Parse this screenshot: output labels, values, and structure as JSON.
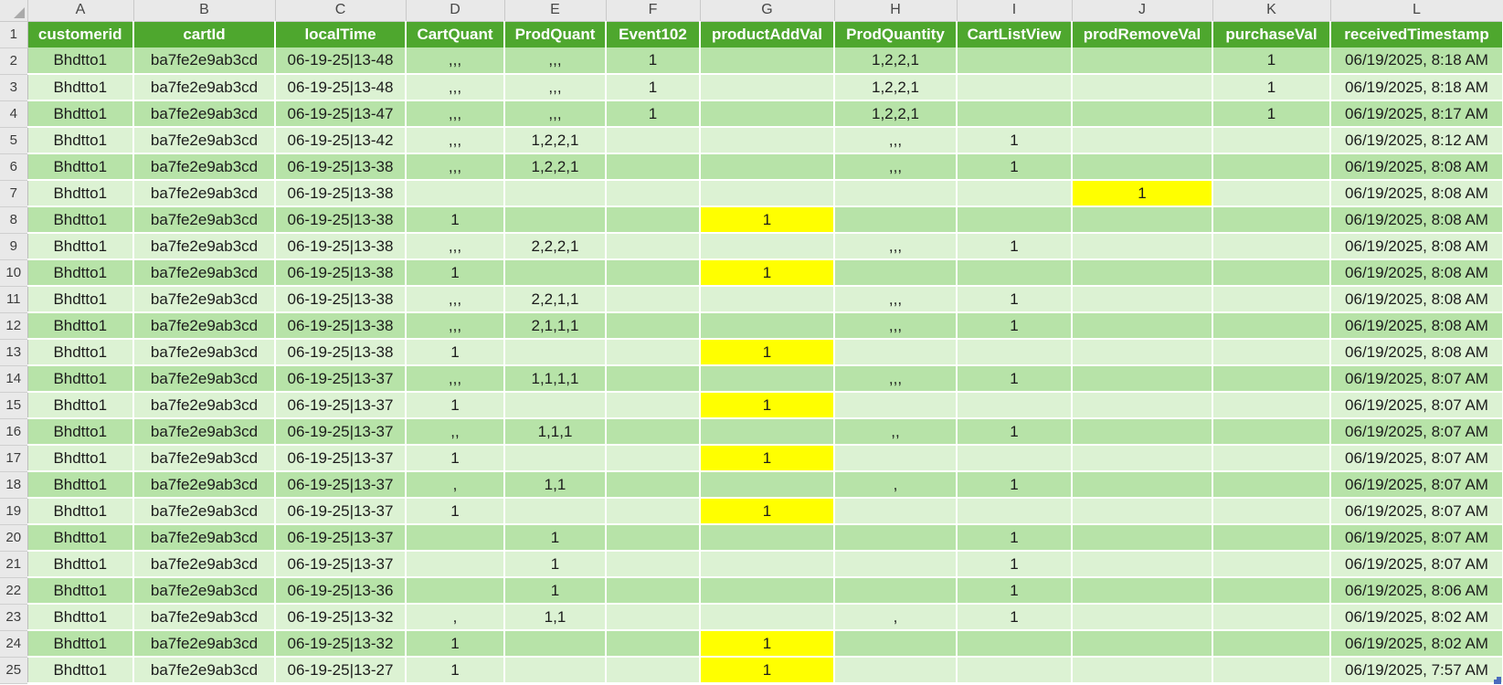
{
  "colors": {
    "header_bg": "#4ea72e",
    "band_dark": "#b7e3a8",
    "band_light": "#dcf2d3",
    "highlight": "#ffff00",
    "chrome_bg": "#e9e9e9",
    "grid_line": "#ffffff",
    "resize_handle": "#4a6bbd"
  },
  "sheet": {
    "header_row_number": "1",
    "column_letters": [
      "A",
      "B",
      "C",
      "D",
      "E",
      "F",
      "G",
      "H",
      "I",
      "J",
      "K",
      "L"
    ],
    "headers": [
      "customerid",
      "cartId",
      "localTime",
      "CartQuant",
      "ProdQuant",
      "Event102",
      "productAddVal",
      "ProdQuantity",
      "CartListView",
      "prodRemoveVal",
      "purchaseVal",
      "receivedTimestamp"
    ],
    "rows": [
      {
        "n": 2,
        "cells": [
          "Bhdtto1",
          "ba7fe2e9ab3cd",
          "06-19-25|13-48",
          ",,,",
          ",,,",
          "1",
          "",
          "1,2,2,1",
          "",
          "",
          "1",
          "06/19/2025, 8:18 AM"
        ],
        "hl": []
      },
      {
        "n": 3,
        "cells": [
          "Bhdtto1",
          "ba7fe2e9ab3cd",
          "06-19-25|13-48",
          ",,,",
          ",,,",
          "1",
          "",
          "1,2,2,1",
          "",
          "",
          "1",
          "06/19/2025, 8:18 AM"
        ],
        "hl": []
      },
      {
        "n": 4,
        "cells": [
          "Bhdtto1",
          "ba7fe2e9ab3cd",
          "06-19-25|13-47",
          ",,,",
          ",,,",
          "1",
          "",
          "1,2,2,1",
          "",
          "",
          "1",
          "06/19/2025, 8:17 AM"
        ],
        "hl": []
      },
      {
        "n": 5,
        "cells": [
          "Bhdtto1",
          "ba7fe2e9ab3cd",
          "06-19-25|13-42",
          ",,,",
          "1,2,2,1",
          "",
          "",
          ",,,",
          "1",
          "",
          "",
          "06/19/2025, 8:12 AM"
        ],
        "hl": []
      },
      {
        "n": 6,
        "cells": [
          "Bhdtto1",
          "ba7fe2e9ab3cd",
          "06-19-25|13-38",
          ",,,",
          "1,2,2,1",
          "",
          "",
          ",,,",
          "1",
          "",
          "",
          "06/19/2025, 8:08 AM"
        ],
        "hl": []
      },
      {
        "n": 7,
        "cells": [
          "Bhdtto1",
          "ba7fe2e9ab3cd",
          "06-19-25|13-38",
          "",
          "",
          "",
          "",
          "",
          "",
          "1",
          "",
          "06/19/2025, 8:08 AM"
        ],
        "hl": [
          9
        ]
      },
      {
        "n": 8,
        "cells": [
          "Bhdtto1",
          "ba7fe2e9ab3cd",
          "06-19-25|13-38",
          "1",
          "",
          "",
          "1",
          "",
          "",
          "",
          "",
          "06/19/2025, 8:08 AM"
        ],
        "hl": [
          6
        ]
      },
      {
        "n": 9,
        "cells": [
          "Bhdtto1",
          "ba7fe2e9ab3cd",
          "06-19-25|13-38",
          ",,,",
          "2,2,2,1",
          "",
          "",
          ",,,",
          "1",
          "",
          "",
          "06/19/2025, 8:08 AM"
        ],
        "hl": []
      },
      {
        "n": 10,
        "cells": [
          "Bhdtto1",
          "ba7fe2e9ab3cd",
          "06-19-25|13-38",
          "1",
          "",
          "",
          "1",
          "",
          "",
          "",
          "",
          "06/19/2025, 8:08 AM"
        ],
        "hl": [
          6
        ]
      },
      {
        "n": 11,
        "cells": [
          "Bhdtto1",
          "ba7fe2e9ab3cd",
          "06-19-25|13-38",
          ",,,",
          "2,2,1,1",
          "",
          "",
          ",,,",
          "1",
          "",
          "",
          "06/19/2025, 8:08 AM"
        ],
        "hl": []
      },
      {
        "n": 12,
        "cells": [
          "Bhdtto1",
          "ba7fe2e9ab3cd",
          "06-19-25|13-38",
          ",,,",
          "2,1,1,1",
          "",
          "",
          ",,,",
          "1",
          "",
          "",
          "06/19/2025, 8:08 AM"
        ],
        "hl": []
      },
      {
        "n": 13,
        "cells": [
          "Bhdtto1",
          "ba7fe2e9ab3cd",
          "06-19-25|13-38",
          "1",
          "",
          "",
          "1",
          "",
          "",
          "",
          "",
          "06/19/2025, 8:08 AM"
        ],
        "hl": [
          6
        ]
      },
      {
        "n": 14,
        "cells": [
          "Bhdtto1",
          "ba7fe2e9ab3cd",
          "06-19-25|13-37",
          ",,,",
          "1,1,1,1",
          "",
          "",
          ",,,",
          "1",
          "",
          "",
          "06/19/2025, 8:07 AM"
        ],
        "hl": []
      },
      {
        "n": 15,
        "cells": [
          "Bhdtto1",
          "ba7fe2e9ab3cd",
          "06-19-25|13-37",
          "1",
          "",
          "",
          "1",
          "",
          "",
          "",
          "",
          "06/19/2025, 8:07 AM"
        ],
        "hl": [
          6
        ]
      },
      {
        "n": 16,
        "cells": [
          "Bhdtto1",
          "ba7fe2e9ab3cd",
          "06-19-25|13-37",
          ",,",
          "1,1,1",
          "",
          "",
          ",,",
          "1",
          "",
          "",
          "06/19/2025, 8:07 AM"
        ],
        "hl": []
      },
      {
        "n": 17,
        "cells": [
          "Bhdtto1",
          "ba7fe2e9ab3cd",
          "06-19-25|13-37",
          "1",
          "",
          "",
          "1",
          "",
          "",
          "",
          "",
          "06/19/2025, 8:07 AM"
        ],
        "hl": [
          6
        ]
      },
      {
        "n": 18,
        "cells": [
          "Bhdtto1",
          "ba7fe2e9ab3cd",
          "06-19-25|13-37",
          ",",
          "1,1",
          "",
          "",
          ",",
          "1",
          "",
          "",
          "06/19/2025, 8:07 AM"
        ],
        "hl": []
      },
      {
        "n": 19,
        "cells": [
          "Bhdtto1",
          "ba7fe2e9ab3cd",
          "06-19-25|13-37",
          "1",
          "",
          "",
          "1",
          "",
          "",
          "",
          "",
          "06/19/2025, 8:07 AM"
        ],
        "hl": [
          6
        ]
      },
      {
        "n": 20,
        "cells": [
          "Bhdtto1",
          "ba7fe2e9ab3cd",
          "06-19-25|13-37",
          "",
          "1",
          "",
          "",
          "",
          "1",
          "",
          "",
          "06/19/2025, 8:07 AM"
        ],
        "hl": []
      },
      {
        "n": 21,
        "cells": [
          "Bhdtto1",
          "ba7fe2e9ab3cd",
          "06-19-25|13-37",
          "",
          "1",
          "",
          "",
          "",
          "1",
          "",
          "",
          "06/19/2025, 8:07 AM"
        ],
        "hl": []
      },
      {
        "n": 22,
        "cells": [
          "Bhdtto1",
          "ba7fe2e9ab3cd",
          "06-19-25|13-36",
          "",
          "1",
          "",
          "",
          "",
          "1",
          "",
          "",
          "06/19/2025, 8:06 AM"
        ],
        "hl": []
      },
      {
        "n": 23,
        "cells": [
          "Bhdtto1",
          "ba7fe2e9ab3cd",
          "06-19-25|13-32",
          ",",
          "1,1",
          "",
          "",
          ",",
          "1",
          "",
          "",
          "06/19/2025, 8:02 AM"
        ],
        "hl": []
      },
      {
        "n": 24,
        "cells": [
          "Bhdtto1",
          "ba7fe2e9ab3cd",
          "06-19-25|13-32",
          "1",
          "",
          "",
          "1",
          "",
          "",
          "",
          "",
          "06/19/2025, 8:02 AM"
        ],
        "hl": [
          6
        ]
      },
      {
        "n": 25,
        "cells": [
          "Bhdtto1",
          "ba7fe2e9ab3cd",
          "06-19-25|13-27",
          "1",
          "",
          "",
          "1",
          "",
          "",
          "",
          "",
          "06/19/2025, 7:57 AM"
        ],
        "hl": [
          6
        ]
      }
    ]
  }
}
